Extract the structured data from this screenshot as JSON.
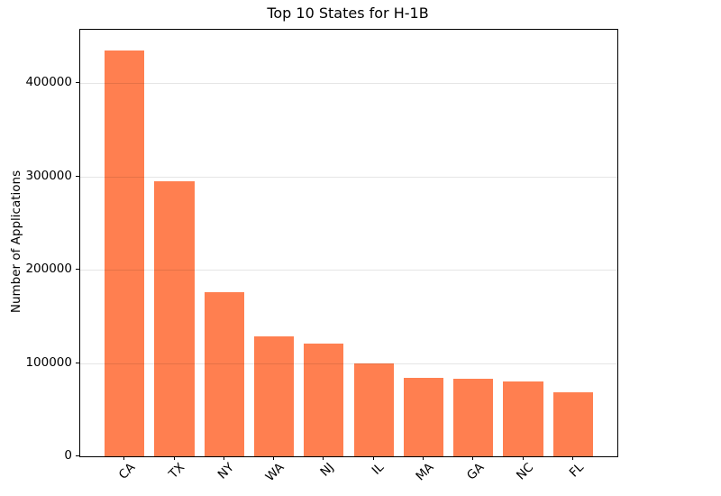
{
  "chart_data": {
    "type": "bar",
    "title": "Top 10 States for H-1B",
    "xlabel": "",
    "ylabel": "Number of Applications",
    "categories": [
      "CA",
      "TX",
      "NY",
      "WA",
      "NJ",
      "IL",
      "MA",
      "GA",
      "NC",
      "FL"
    ],
    "values": [
      435000,
      295000,
      176000,
      129000,
      121000,
      100000,
      84000,
      83000,
      80000,
      69000
    ],
    "yticks": [
      0,
      100000,
      200000,
      300000,
      400000
    ],
    "ytick_labels": [
      "0",
      "100000",
      "200000",
      "300000",
      "400000"
    ],
    "ylim": [
      0,
      457000
    ],
    "bar_color": "#FF7F50",
    "grid": true,
    "grid_color": "rgba(0,0,0,0.10)",
    "legend": "none",
    "x_tick_label_rotation": 45
  }
}
